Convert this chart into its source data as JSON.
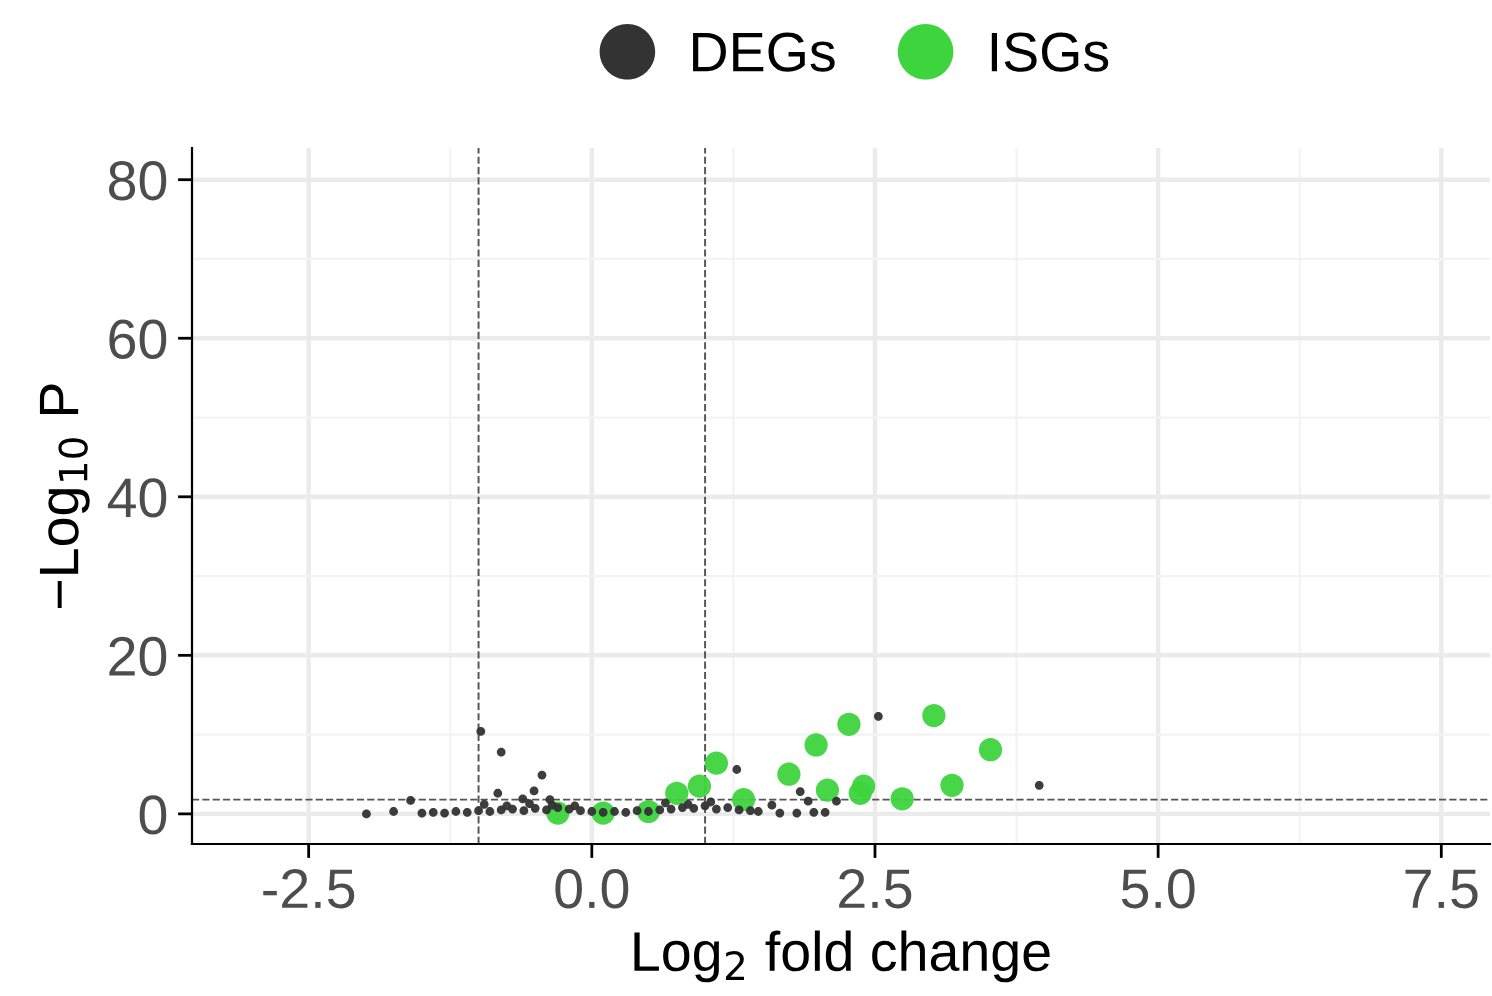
{
  "chart_data": {
    "type": "scatter",
    "xlabel": "Log$_{2}$ fold change",
    "ylabel": "−Log$_{10}$ P",
    "xlim": [
      -3.53,
      7.93
    ],
    "ylim": [
      -3.8,
      84
    ],
    "xticks": [
      {
        "value": -2.5,
        "label": "-2.5"
      },
      {
        "value": 0,
        "label": "0.0"
      },
      {
        "value": 2.5,
        "label": "2.5"
      },
      {
        "value": 5,
        "label": "5.0"
      },
      {
        "value": 7.5,
        "label": "7.5"
      }
    ],
    "yticks": [
      0,
      20,
      40,
      60,
      80
    ],
    "grid": true,
    "legend": "top",
    "marker": "circle",
    "ref_lines": [
      {
        "axis": "x",
        "value": -1,
        "line_style": "dashed",
        "color": "#555555"
      },
      {
        "axis": "x",
        "value": 1,
        "line_style": "dashed",
        "color": "#555555"
      },
      {
        "axis": "y",
        "value": 1.8,
        "line_style": "dashed",
        "color": "#555555"
      }
    ],
    "series": [
      {
        "name": "DEGs",
        "color": "#333333",
        "x": [
          -0.98,
          -0.8,
          -0.44,
          -0.51,
          -0.83,
          -1.6,
          -1.99,
          -1.75,
          -0.37,
          -0.61,
          2.53,
          3.95,
          1.28,
          1.84,
          1.91,
          2.16,
          1.59,
          1.66,
          1.81,
          1.96,
          2.06,
          1.47,
          -1.5,
          -1.4,
          -1.3,
          -1.2,
          -1.1,
          -1.0,
          -0.9,
          -0.8,
          -0.7,
          -0.6,
          -0.5,
          -0.4,
          -0.3,
          -0.2,
          -0.1,
          0.0,
          0.1,
          0.2,
          0.3,
          0.4,
          0.5,
          0.6,
          0.7,
          0.8,
          0.9,
          1.0,
          1.1,
          1.2,
          1.3,
          1.4,
          -0.95,
          -0.75,
          -0.55,
          -0.35,
          -0.15,
          0.65,
          0.85,
          1.05
        ],
        "values": [
          10.4,
          7.8,
          4.9,
          2.9,
          2.6,
          1.7,
          0,
          0.3,
          1.8,
          1.9,
          12.3,
          3.6,
          5.6,
          2.8,
          1.6,
          1.6,
          1.1,
          0.1,
          0.1,
          0.2,
          0.2,
          0.3,
          0.1,
          0.2,
          0.1,
          0.3,
          0.2,
          0.4,
          0.3,
          0.5,
          0.6,
          0.4,
          0.7,
          0.5,
          0.8,
          0.6,
          0.4,
          0.3,
          0.2,
          0.3,
          0.2,
          0.4,
          0.3,
          0.5,
          0.6,
          0.8,
          0.7,
          1.0,
          0.6,
          0.8,
          0.5,
          0.4,
          1.2,
          1.0,
          1.3,
          1.1,
          1.0,
          1.4,
          1.2,
          1.5
        ]
      },
      {
        "name": "ISGs",
        "color": "#3ed43e",
        "x": [
          3.02,
          3.52,
          2.27,
          1.98,
          1.74,
          2.08,
          2.4,
          2.37,
          2.74,
          3.18,
          1.1,
          1.34,
          -0.3,
          0.1,
          0.5,
          0.75,
          0.95
        ],
        "values": [
          12.4,
          8.1,
          11.3,
          8.7,
          5.0,
          3.0,
          3.5,
          2.6,
          1.9,
          3.6,
          6.4,
          1.8,
          0.1,
          0.1,
          0.3,
          2.6,
          3.5
        ]
      }
    ]
  }
}
